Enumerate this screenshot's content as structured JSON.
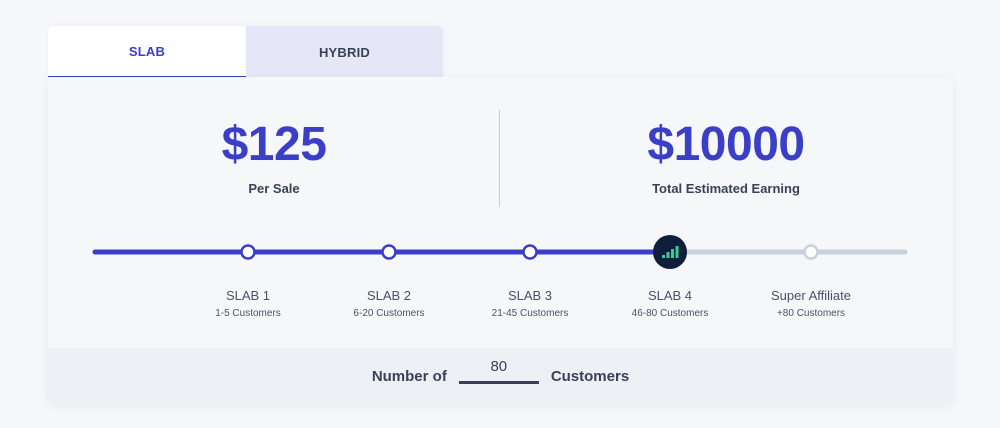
{
  "tabs": [
    {
      "label": "SLAB",
      "active": true
    },
    {
      "label": "HYBRID",
      "active": false
    }
  ],
  "stats": {
    "per_sale": {
      "amount": "$125",
      "label": "Per Sale"
    },
    "total": {
      "amount": "$10000",
      "label": "Total Estimated Earning"
    }
  },
  "slider": {
    "current_index": 3,
    "slabs": [
      {
        "name": "SLAB 1",
        "range": "1-5 Customers"
      },
      {
        "name": "SLAB 2",
        "range": "6-20 Customers"
      },
      {
        "name": "SLAB 3",
        "range": "21-45 Customers"
      },
      {
        "name": "SLAB 4",
        "range": "46-80 Customers"
      },
      {
        "name": "Super Affiliate",
        "range": "+80 Customers"
      }
    ]
  },
  "footer": {
    "prefix": "Number of",
    "value": "80",
    "suffix": "Customers"
  },
  "colors": {
    "accent": "#3b3fc8",
    "track_inactive": "#c8d0db",
    "handle": "#0f1f3a",
    "handle_icon": "#2fcf9a",
    "text": "#3a4156"
  }
}
